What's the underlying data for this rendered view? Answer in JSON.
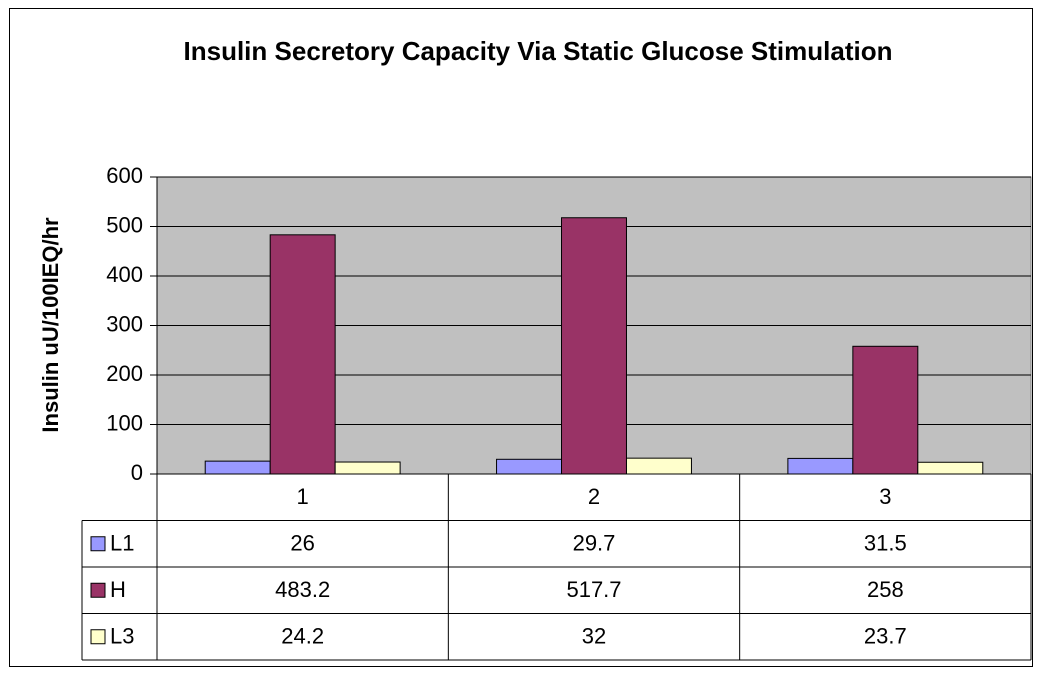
{
  "chart_data": {
    "type": "bar",
    "title": "Insulin Secretory Capacity Via Static Glucose Stimulation",
    "y_label": "Insulin uU/100IEQ/hr",
    "categories": [
      "1",
      "2",
      "3"
    ],
    "series": [
      {
        "name": "L1",
        "color": "#9999ff",
        "values": [
          26,
          29.7,
          31.5
        ]
      },
      {
        "name": "H",
        "color": "#993366",
        "values": [
          483.2,
          517.7,
          258
        ]
      },
      {
        "name": "L3",
        "color": "#ffffcc",
        "values": [
          24.2,
          32,
          23.7
        ]
      }
    ],
    "ylim": [
      0,
      600
    ],
    "yticks": [
      0,
      100,
      200,
      300,
      400,
      500,
      600
    ],
    "grid": true,
    "plot_background": "#c0c0c0",
    "data_table": true
  }
}
